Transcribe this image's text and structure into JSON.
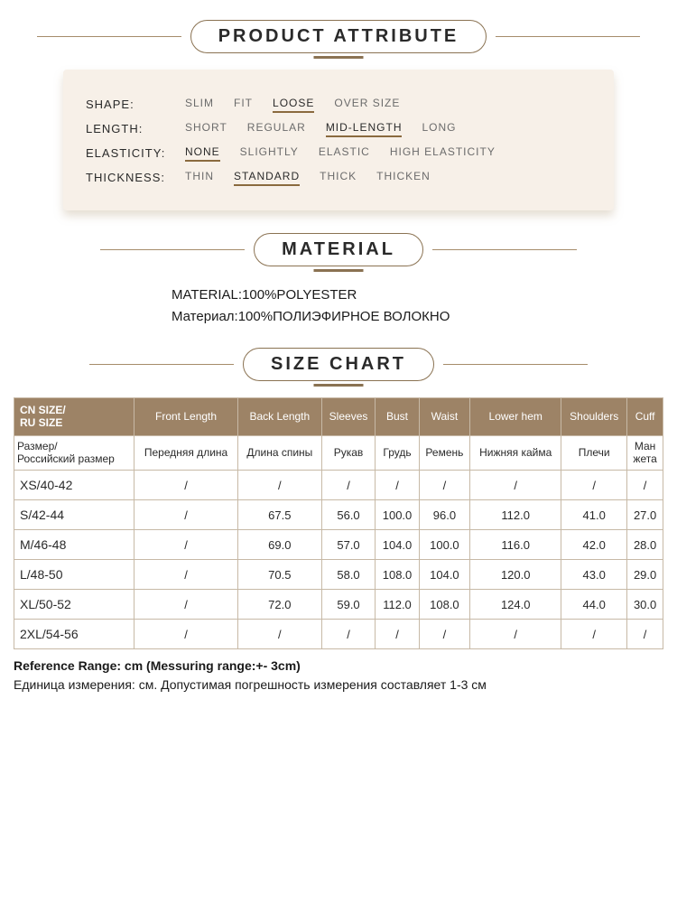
{
  "sections": {
    "attribute": {
      "title": "PRODUCT ATTRIBUTE",
      "rows": [
        {
          "label": "SHAPE:",
          "options": [
            {
              "text": "SLIM",
              "sel": false
            },
            {
              "text": "FIT",
              "sel": false
            },
            {
              "text": "LOOSE",
              "sel": true
            },
            {
              "text": "OVER SIZE",
              "sel": false
            }
          ]
        },
        {
          "label": "LENGTH:",
          "options": [
            {
              "text": "SHORT",
              "sel": false
            },
            {
              "text": "REGULAR",
              "sel": false
            },
            {
              "text": "MID-LENGTH",
              "sel": true
            },
            {
              "text": "LONG",
              "sel": false
            }
          ]
        },
        {
          "label": "ELASTICITY:",
          "options": [
            {
              "text": "NONE",
              "sel": true
            },
            {
              "text": "SLIGHTLY",
              "sel": false
            },
            {
              "text": "ELASTIC",
              "sel": false
            },
            {
              "text": "HIGH ELASTICITY",
              "sel": false
            }
          ]
        },
        {
          "label": "THICKNESS:",
          "options": [
            {
              "text": "THIN",
              "sel": false
            },
            {
              "text": "STANDARD",
              "sel": true
            },
            {
              "text": "THICK",
              "sel": false
            },
            {
              "text": "THICKEN",
              "sel": false
            }
          ]
        }
      ]
    },
    "material": {
      "title": "MATERIAL",
      "line1": "MATERIAL:100%POLYESTER",
      "line2": "Материал:100%ПОЛИЭФИРНОЕ ВОЛОКНО"
    },
    "size": {
      "title": "SIZE CHART",
      "headers_en": [
        "CN SIZE/\nRU SIZE",
        "Front Length",
        "Back Length",
        "Sleeves",
        "Bust",
        "Waist",
        "Lower hem",
        "Shoulders",
        "Cuff"
      ],
      "headers_ru": [
        "Размер/\nРоссийский размер",
        "Передняя длина",
        "Длина спины",
        "Рукав",
        "Грудь",
        "Ремень",
        "Нижняя кайма",
        "Плечи",
        "Ман\nжета"
      ],
      "rows": [
        [
          "XS/40-42",
          "/",
          "/",
          "/",
          "/",
          "/",
          "/",
          "/",
          "/"
        ],
        [
          "S/42-44",
          "/",
          "67.5",
          "56.0",
          "100.0",
          "96.0",
          "112.0",
          "41.0",
          "27.0"
        ],
        [
          "M/46-48",
          "/",
          "69.0",
          "57.0",
          "104.0",
          "100.0",
          "116.0",
          "42.0",
          "28.0"
        ],
        [
          "L/48-50",
          "/",
          "70.5",
          "58.0",
          "108.0",
          "104.0",
          "120.0",
          "43.0",
          "29.0"
        ],
        [
          "XL/50-52",
          "/",
          "72.0",
          "59.0",
          "112.0",
          "108.0",
          "124.0",
          "44.0",
          "30.0"
        ],
        [
          "2XL/54-56",
          "/",
          "/",
          "/",
          "/",
          "/",
          "/",
          "/",
          "/"
        ]
      ],
      "footnote_en": "Reference Range: cm (Messuring range:+- 3cm)",
      "footnote_ru": "Единица измерения: см. Допустимая погрешность измерения составляет 1-3 см"
    }
  },
  "colors": {
    "card_bg": "#f7f0e8",
    "accent": "#8a7252",
    "table_header_bg": "#9d8366",
    "border": "#c7b9a6"
  }
}
